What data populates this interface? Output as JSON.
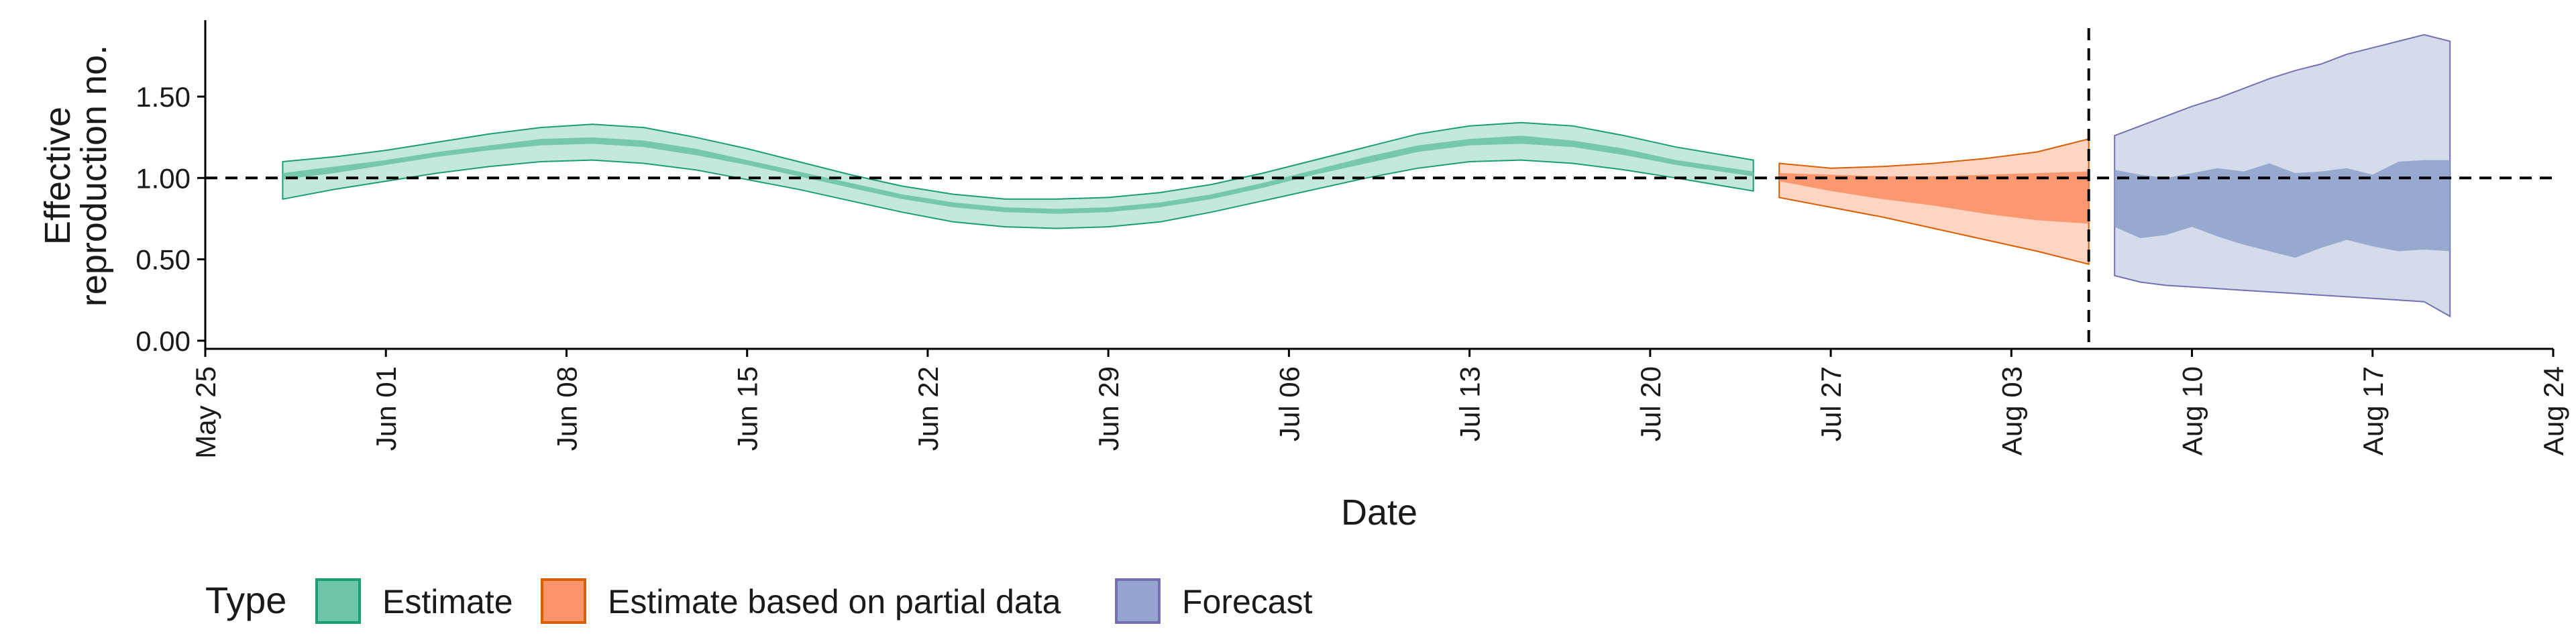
{
  "chart_data": {
    "type": "area",
    "xlabel": "Date",
    "ylabel_lines": [
      "Effective",
      "reproduction no."
    ],
    "ylim": [
      -0.05,
      1.97
    ],
    "y_ticks": [
      0.0,
      0.5,
      1.0,
      1.5
    ],
    "y_tick_labels": [
      "0.00",
      "0.50",
      "1.00",
      "1.50"
    ],
    "x_range": [
      "2020-05-25",
      "2020-08-24"
    ],
    "x_ticks": [
      "2020-05-25",
      "2020-06-01",
      "2020-06-08",
      "2020-06-15",
      "2020-06-22",
      "2020-06-29",
      "2020-07-06",
      "2020-07-13",
      "2020-07-20",
      "2020-07-27",
      "2020-08-03",
      "2020-08-10",
      "2020-08-17",
      "2020-08-24"
    ],
    "x_tick_labels": [
      "May 25",
      "Jun 01",
      "Jun 08",
      "Jun 15",
      "Jun 22",
      "Jun 29",
      "Jul 06",
      "Jul 13",
      "Jul 20",
      "Jul 27",
      "Aug 03",
      "Aug 10",
      "Aug 17",
      "Aug 24"
    ],
    "reference_line_y": 1.0,
    "vline_date": "2020-08-06",
    "legend": {
      "title": "Type",
      "position": "bottom",
      "entries": [
        "Estimate",
        "Estimate based on partial data",
        "Forecast"
      ]
    },
    "series": [
      {
        "name": "Estimate",
        "color": "#66c2a5",
        "edge_color": "#1b9e77",
        "x": [
          "2020-05-28",
          "2020-05-30",
          "2020-06-01",
          "2020-06-03",
          "2020-06-05",
          "2020-06-07",
          "2020-06-09",
          "2020-06-11",
          "2020-06-13",
          "2020-06-15",
          "2020-06-17",
          "2020-06-19",
          "2020-06-21",
          "2020-06-23",
          "2020-06-25",
          "2020-06-27",
          "2020-06-29",
          "2020-07-01",
          "2020-07-03",
          "2020-07-05",
          "2020-07-07",
          "2020-07-09",
          "2020-07-11",
          "2020-07-13",
          "2020-07-15",
          "2020-07-17",
          "2020-07-19",
          "2020-07-21",
          "2020-07-24"
        ],
        "lower90": [
          0.87,
          0.93,
          0.98,
          1.03,
          1.07,
          1.1,
          1.11,
          1.09,
          1.05,
          0.99,
          0.93,
          0.86,
          0.79,
          0.73,
          0.7,
          0.69,
          0.7,
          0.73,
          0.79,
          0.86,
          0.93,
          1.0,
          1.06,
          1.1,
          1.11,
          1.09,
          1.05,
          1.0,
          0.92
        ],
        "upper90": [
          1.1,
          1.13,
          1.17,
          1.22,
          1.27,
          1.31,
          1.33,
          1.31,
          1.25,
          1.18,
          1.1,
          1.02,
          0.95,
          0.9,
          0.87,
          0.87,
          0.88,
          0.91,
          0.96,
          1.03,
          1.11,
          1.19,
          1.27,
          1.32,
          1.34,
          1.32,
          1.26,
          1.19,
          1.11
        ],
        "lower50": [
          0.99,
          1.03,
          1.08,
          1.13,
          1.17,
          1.2,
          1.21,
          1.19,
          1.14,
          1.08,
          1.01,
          0.94,
          0.87,
          0.82,
          0.79,
          0.78,
          0.79,
          0.82,
          0.87,
          0.94,
          1.02,
          1.09,
          1.16,
          1.2,
          1.21,
          1.19,
          1.14,
          1.08,
          1.01
        ],
        "upper50": [
          1.03,
          1.07,
          1.11,
          1.16,
          1.2,
          1.24,
          1.25,
          1.23,
          1.18,
          1.11,
          1.04,
          0.97,
          0.9,
          0.85,
          0.82,
          0.81,
          0.82,
          0.85,
          0.9,
          0.97,
          1.05,
          1.13,
          1.2,
          1.24,
          1.26,
          1.23,
          1.18,
          1.11,
          1.04
        ]
      },
      {
        "name": "Estimate based on partial data",
        "color": "#fc8d62",
        "edge_color": "#d95f02",
        "x": [
          "2020-07-25",
          "2020-07-27",
          "2020-07-29",
          "2020-07-31",
          "2020-08-02",
          "2020-08-04",
          "2020-08-06"
        ],
        "lower90": [
          0.88,
          0.82,
          0.76,
          0.69,
          0.62,
          0.55,
          0.47
        ],
        "upper90": [
          1.09,
          1.06,
          1.07,
          1.09,
          1.12,
          1.16,
          1.24
        ],
        "lower50": [
          0.98,
          0.92,
          0.87,
          0.83,
          0.78,
          0.74,
          0.72
        ],
        "upper50": [
          1.03,
          1.02,
          1.01,
          1.01,
          1.02,
          1.03,
          1.04
        ]
      },
      {
        "name": "Forecast",
        "color": "#8da0cb",
        "edge_color": "#7570b3",
        "x": [
          "2020-08-07",
          "2020-08-08",
          "2020-08-09",
          "2020-08-10",
          "2020-08-11",
          "2020-08-12",
          "2020-08-13",
          "2020-08-14",
          "2020-08-15",
          "2020-08-16",
          "2020-08-17",
          "2020-08-18",
          "2020-08-19",
          "2020-08-20"
        ],
        "lower90": [
          0.4,
          0.36,
          0.34,
          0.33,
          0.32,
          0.31,
          0.3,
          0.29,
          0.28,
          0.27,
          0.26,
          0.25,
          0.24,
          0.15
        ],
        "upper90": [
          1.26,
          1.32,
          1.38,
          1.44,
          1.49,
          1.55,
          1.61,
          1.66,
          1.7,
          1.76,
          1.8,
          1.84,
          1.88,
          1.84
        ],
        "lower50": [
          0.7,
          0.63,
          0.65,
          0.7,
          0.64,
          0.59,
          0.55,
          0.51,
          0.57,
          0.62,
          0.58,
          0.55,
          0.56,
          0.55
        ],
        "upper50": [
          1.05,
          1.02,
          1.0,
          1.03,
          1.06,
          1.04,
          1.09,
          1.03,
          1.04,
          1.06,
          1.02,
          1.1,
          1.11,
          1.11
        ]
      }
    ]
  }
}
